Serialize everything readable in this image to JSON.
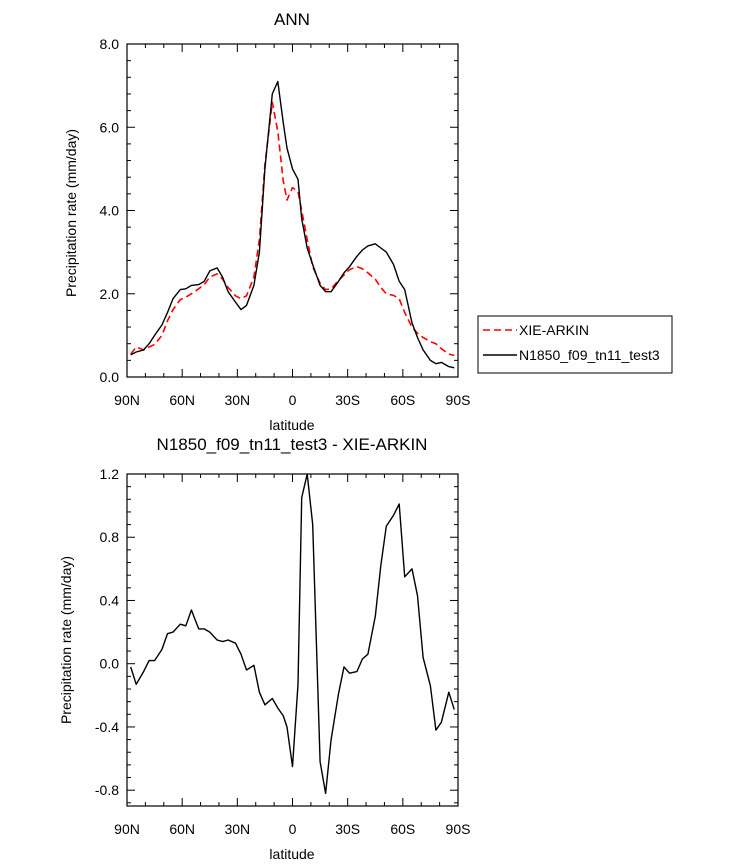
{
  "chart_data": [
    {
      "type": "line",
      "title": "ANN",
      "xlabel": "latitude",
      "ylabel": "Precipitation rate (mm/day)",
      "xlim": [
        -90,
        90
      ],
      "ylim": [
        0,
        8
      ],
      "x_ticks": [
        {
          "value": -90,
          "label": "90N"
        },
        {
          "value": -60,
          "label": "60N"
        },
        {
          "value": -30,
          "label": "30N"
        },
        {
          "value": 0,
          "label": "0"
        },
        {
          "value": 30,
          "label": "30S"
        },
        {
          "value": 60,
          "label": "60S"
        },
        {
          "value": 90,
          "label": "90S"
        }
      ],
      "y_ticks": [
        {
          "value": 0,
          "label": "0.0"
        },
        {
          "value": 2,
          "label": "2.0"
        },
        {
          "value": 4,
          "label": "4.0"
        },
        {
          "value": 6,
          "label": "6.0"
        },
        {
          "value": 8,
          "label": "8.0"
        }
      ],
      "legend": [
        "XIE-ARKIN",
        "N1850_f09_tn11_test3"
      ],
      "series": [
        {
          "name": "XIE-ARKIN",
          "color": "#ff0000",
          "dash": true,
          "x": [
            -88,
            -85,
            -81,
            -78,
            -75,
            -71,
            -68,
            -65,
            -61,
            -58,
            -55,
            -51,
            -48,
            -45,
            -41,
            -38,
            -35,
            -31,
            -28,
            -25,
            -21,
            -18,
            -15,
            -11,
            -8,
            -5,
            -3,
            0,
            3,
            5,
            8,
            11,
            15,
            18,
            21,
            25,
            28,
            31,
            35,
            38,
            41,
            45,
            48,
            51,
            55,
            58,
            61,
            65,
            68,
            71,
            75,
            78,
            81,
            85,
            88
          ],
          "values": [
            0.55,
            0.72,
            0.65,
            0.72,
            0.78,
            1.0,
            1.35,
            1.62,
            1.86,
            1.92,
            2.0,
            2.12,
            2.22,
            2.4,
            2.48,
            2.35,
            2.15,
            1.95,
            1.88,
            1.95,
            2.4,
            3.3,
            5.1,
            6.6,
            5.9,
            4.7,
            4.25,
            4.55,
            4.45,
            4.0,
            3.3,
            2.65,
            2.25,
            2.1,
            2.12,
            2.32,
            2.45,
            2.58,
            2.65,
            2.6,
            2.5,
            2.35,
            2.15,
            2.0,
            1.96,
            1.88,
            1.55,
            1.2,
            1.05,
            0.95,
            0.85,
            0.8,
            0.68,
            0.55,
            0.52
          ]
        },
        {
          "name": "N1850_f09_tn11_test3",
          "color": "#000000",
          "dash": false,
          "x": [
            -88,
            -85,
            -81,
            -78,
            -75,
            -71,
            -68,
            -65,
            -61,
            -58,
            -55,
            -51,
            -48,
            -45,
            -41,
            -38,
            -35,
            -31,
            -28,
            -25,
            -21,
            -18,
            -15,
            -11,
            -8,
            -5,
            -3,
            0,
            3,
            5,
            8,
            11,
            15,
            18,
            21,
            25,
            28,
            31,
            35,
            38,
            41,
            45,
            48,
            51,
            55,
            58,
            61,
            65,
            68,
            71,
            75,
            78,
            81,
            85,
            88
          ],
          "values": [
            0.53,
            0.6,
            0.65,
            0.8,
            1.0,
            1.25,
            1.55,
            1.88,
            2.1,
            2.12,
            2.2,
            2.22,
            2.3,
            2.55,
            2.62,
            2.4,
            2.05,
            1.8,
            1.62,
            1.72,
            2.2,
            3.0,
            5.0,
            6.8,
            7.1,
            6.1,
            5.5,
            5.0,
            4.75,
            3.8,
            3.1,
            2.7,
            2.2,
            2.05,
            2.05,
            2.3,
            2.5,
            2.65,
            2.9,
            3.05,
            3.15,
            3.2,
            3.1,
            3.0,
            2.7,
            2.3,
            2.1,
            1.3,
            0.95,
            0.65,
            0.4,
            0.32,
            0.35,
            0.25,
            0.22
          ]
        }
      ]
    },
    {
      "type": "line",
      "title": "N1850_f09_tn11_test3 - XIE-ARKIN",
      "xlabel": "latitude",
      "ylabel": "Precipitation rate (mm/day)",
      "xlim": [
        -90,
        90
      ],
      "ylim": [
        -0.9,
        1.2
      ],
      "x_ticks": [
        {
          "value": -90,
          "label": "90N"
        },
        {
          "value": -60,
          "label": "60N"
        },
        {
          "value": -30,
          "label": "30N"
        },
        {
          "value": 0,
          "label": "0"
        },
        {
          "value": 30,
          "label": "30S"
        },
        {
          "value": 60,
          "label": "60S"
        },
        {
          "value": 90,
          "label": "90S"
        }
      ],
      "y_ticks": [
        {
          "value": -0.8,
          "label": "-0.8"
        },
        {
          "value": -0.4,
          "label": "-0.4"
        },
        {
          "value": 0.0,
          "label": "0.0"
        },
        {
          "value": 0.4,
          "label": "0.4"
        },
        {
          "value": 0.8,
          "label": "0.8"
        },
        {
          "value": 1.2,
          "label": "1.2"
        }
      ],
      "series": [
        {
          "name": "N1850_f09_tn11_test3 - XIE-ARKIN",
          "color": "#000000",
          "dash": false,
          "x": [
            -88,
            -85,
            -81,
            -78,
            -75,
            -71,
            -68,
            -65,
            -61,
            -58,
            -55,
            -51,
            -48,
            -45,
            -41,
            -38,
            -35,
            -31,
            -28,
            -25,
            -21,
            -18,
            -15,
            -11,
            -8,
            -5,
            -3,
            0,
            3,
            5,
            8,
            11,
            15,
            18,
            21,
            25,
            28,
            31,
            35,
            38,
            41,
            45,
            48,
            51,
            55,
            58,
            61,
            65,
            68,
            71,
            75,
            78,
            81,
            85,
            88
          ],
          "values": [
            -0.02,
            -0.13,
            -0.05,
            0.02,
            0.02,
            0.09,
            0.19,
            0.2,
            0.25,
            0.24,
            0.34,
            0.22,
            0.22,
            0.2,
            0.15,
            0.14,
            0.15,
            0.13,
            0.06,
            -0.04,
            -0.01,
            -0.18,
            -0.26,
            -0.22,
            -0.28,
            -0.33,
            -0.4,
            -0.65,
            -0.13,
            1.05,
            1.2,
            0.88,
            -0.62,
            -0.82,
            -0.48,
            -0.19,
            -0.02,
            -0.06,
            -0.05,
            0.03,
            0.06,
            0.3,
            0.62,
            0.87,
            0.94,
            1.01,
            0.55,
            0.6,
            0.43,
            0.04,
            -0.14,
            -0.42,
            -0.37,
            -0.18,
            -0.29
          ]
        }
      ]
    }
  ]
}
